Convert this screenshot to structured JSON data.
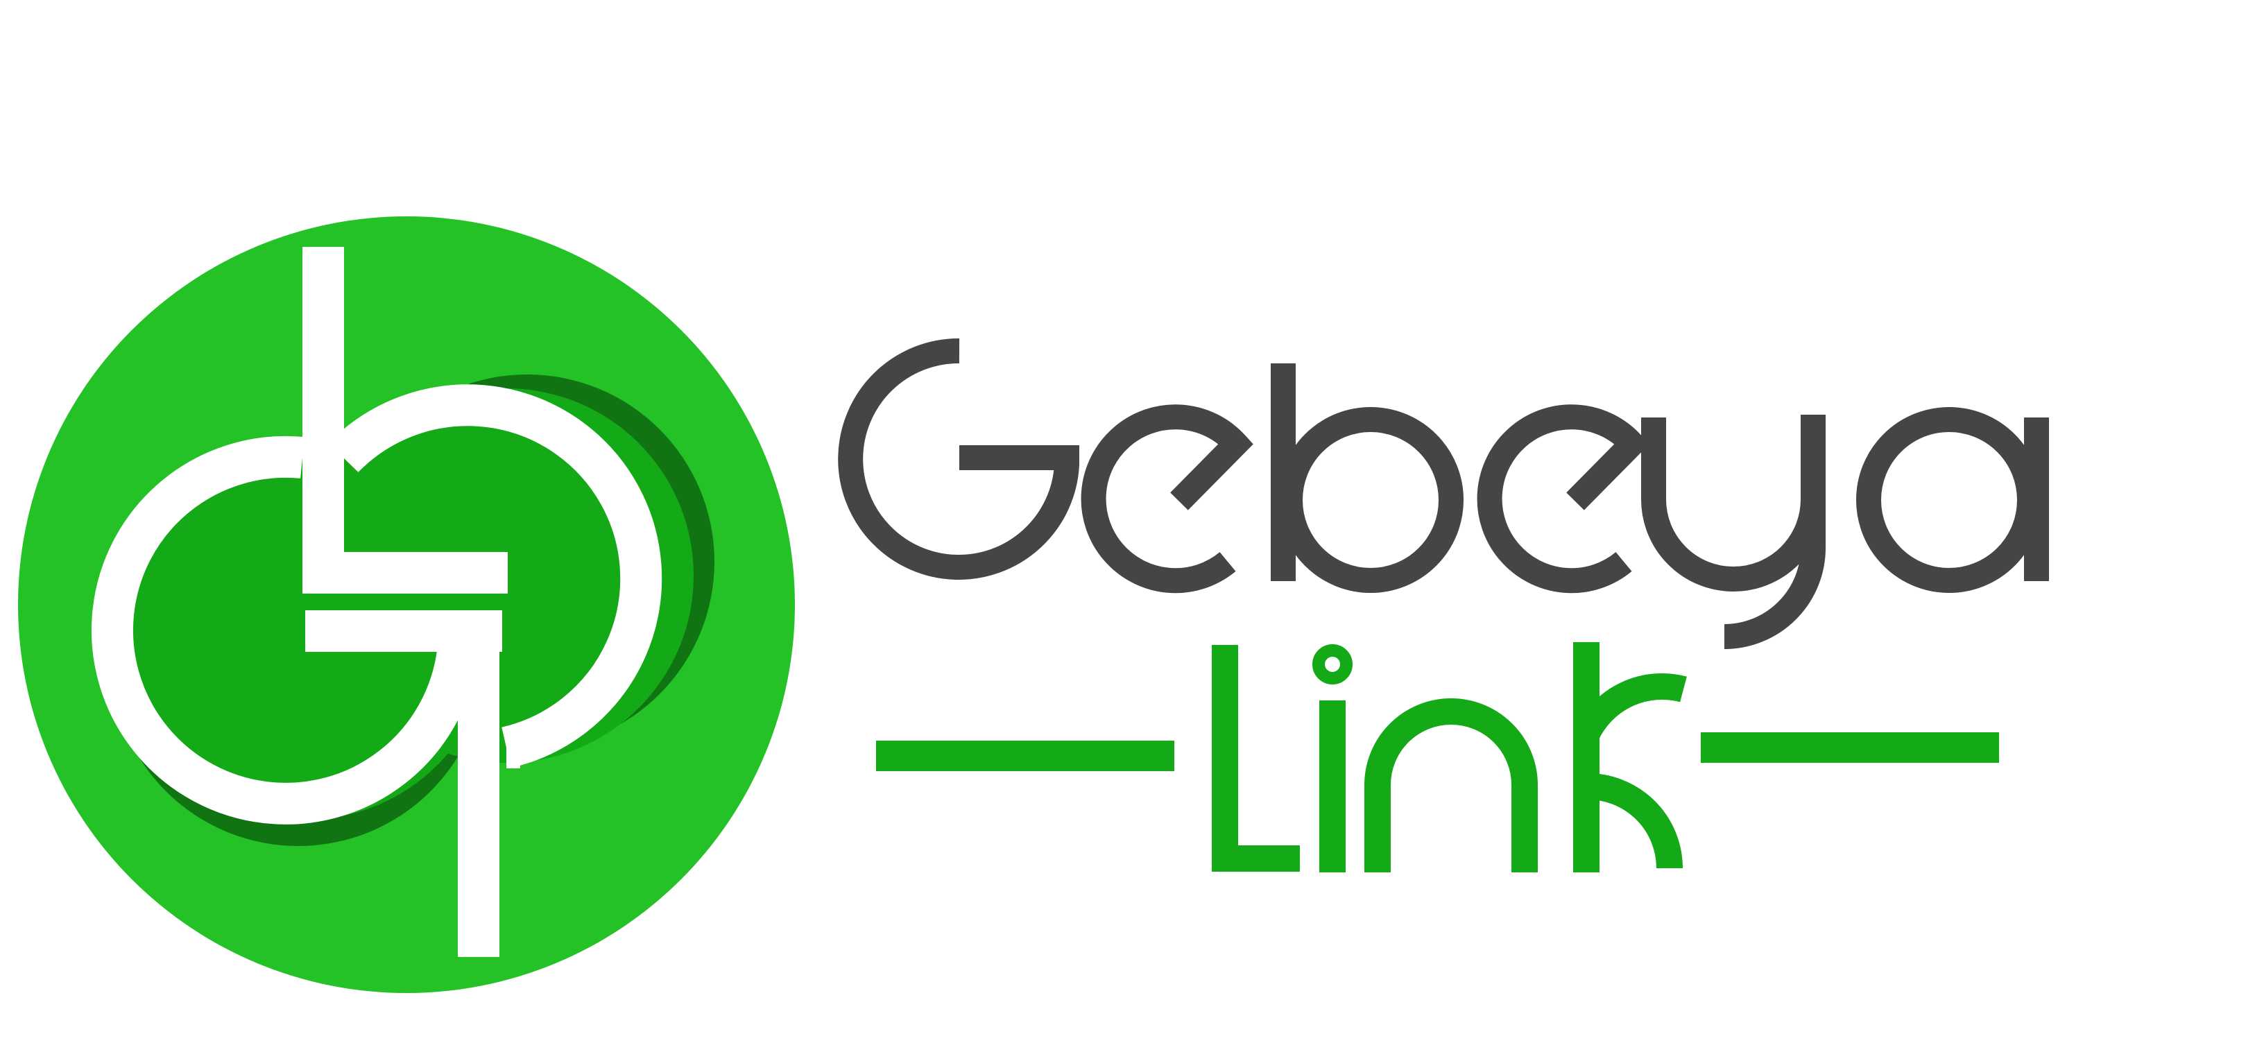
{
  "logo": {
    "brand_name": "Gebeya",
    "sub_name": "Link",
    "icon_name": "gebeya-link-logo-icon",
    "colors": {
      "circle": "#25c227",
      "inner_circle": "#13a917",
      "shadow": "#0f6b12",
      "stroke": "#ffffff",
      "gebeya_text": "#454545",
      "link_text": "#13a917"
    }
  }
}
